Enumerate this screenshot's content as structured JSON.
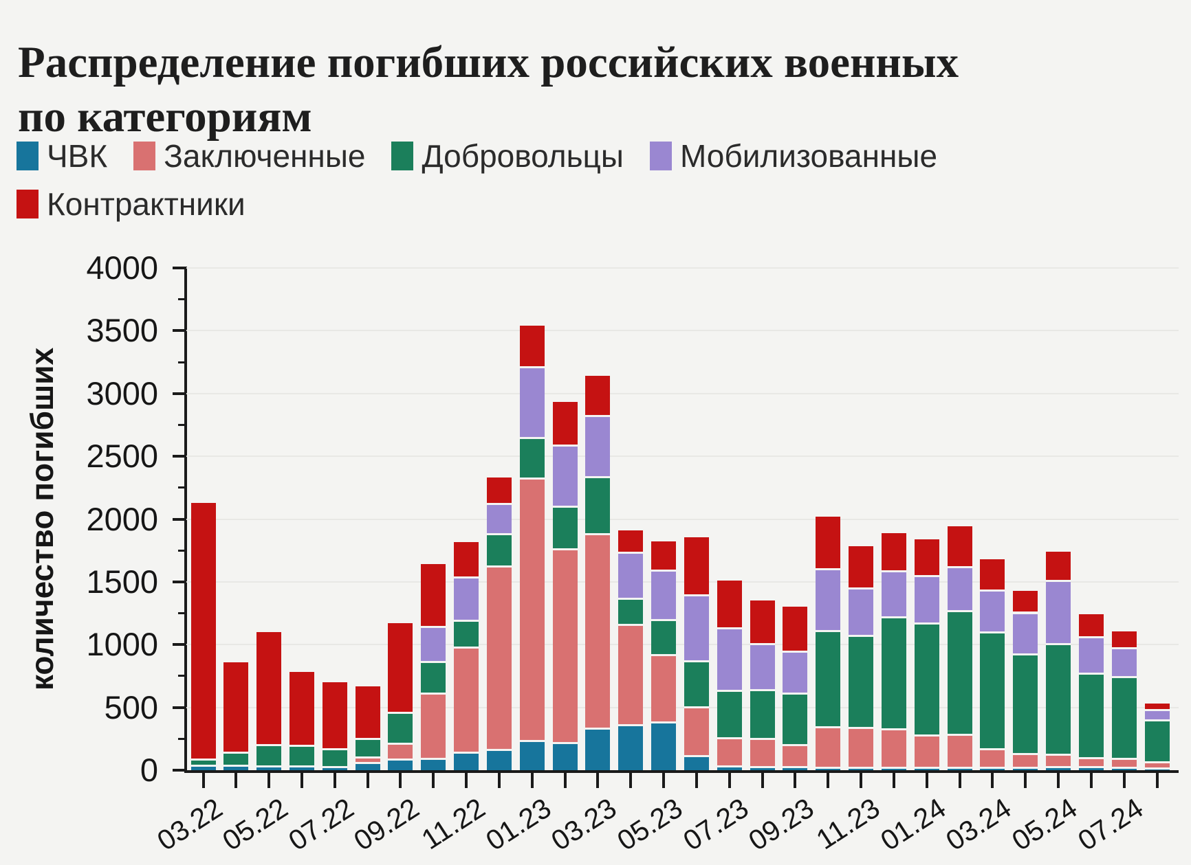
{
  "title": "Распределение погибших российских военных по категориям",
  "legend": {
    "items": [
      {
        "label": "ЧВК",
        "color": "#17759c"
      },
      {
        "label": "Заключенные",
        "color": "#d97171"
      },
      {
        "label": "Добровольцы",
        "color": "#1b7f5b"
      },
      {
        "label": "Мобилизованные",
        "color": "#9a87d1"
      },
      {
        "label": "Контрактники",
        "color": "#c51212"
      }
    ]
  },
  "chart_data": {
    "type": "bar",
    "stacked": true,
    "title": "Распределение погибших российских военных по категориям",
    "ylabel": "количество погибших",
    "xlabel": "",
    "ylim": [
      0,
      4000
    ],
    "ytick_step": 500,
    "yminor_tick_step": 250,
    "grid": "horizontal",
    "legend_position": "top",
    "categories": [
      "03.22",
      "04.22",
      "05.22",
      "06.22",
      "07.22",
      "08.22",
      "09.22",
      "10.22",
      "11.22",
      "12.22",
      "01.23",
      "02.23",
      "03.23",
      "04.23",
      "05.23",
      "06.23",
      "07.23",
      "08.23",
      "09.23",
      "10.23",
      "11.23",
      "12.23",
      "01.24",
      "02.24",
      "03.24",
      "04.24",
      "05.24",
      "06.24",
      "07.24",
      "08.24"
    ],
    "xtick_labels_shown": [
      "03.22",
      "05.22",
      "07.22",
      "09.22",
      "11.22",
      "01.23",
      "03.23",
      "05.23",
      "07.23",
      "09.23",
      "11.23",
      "01.24",
      "03.24",
      "05.24",
      "07.24"
    ],
    "series": [
      {
        "name": "ЧВК",
        "color": "#17759c",
        "values": [
          30,
          30,
          20,
          20,
          15,
          50,
          75,
          80,
          130,
          155,
          225,
          210,
          325,
          350,
          370,
          105,
          20,
          15,
          15,
          10,
          10,
          10,
          10,
          10,
          10,
          10,
          15,
          15,
          10,
          5
        ]
      },
      {
        "name": "Заключенные",
        "color": "#d97171",
        "values": [
          0,
          0,
          0,
          0,
          0,
          45,
          125,
          520,
          840,
          1460,
          2090,
          1540,
          1545,
          800,
          540,
          385,
          225,
          225,
          175,
          325,
          320,
          310,
          260,
          265,
          150,
          110,
          100,
          75,
          70,
          50
        ]
      },
      {
        "name": "Добровольцы",
        "color": "#1b7f5b",
        "values": [
          45,
          100,
          170,
          165,
          145,
          145,
          250,
          255,
          210,
          255,
          325,
          340,
          455,
          205,
          280,
          370,
          380,
          390,
          410,
          765,
          730,
          890,
          890,
          985,
          930,
          795,
          880,
          670,
          655,
          335
        ]
      },
      {
        "name": "Мобилизованные",
        "color": "#9a87d1",
        "values": [
          0,
          0,
          0,
          0,
          0,
          0,
          0,
          280,
          345,
          240,
          560,
          490,
          485,
          370,
          390,
          525,
          495,
          365,
          335,
          495,
          380,
          365,
          380,
          350,
          335,
          330,
          505,
          290,
          230,
          80
        ]
      },
      {
        "name": "Контрактники",
        "color": "#c51212",
        "values": [
          2055,
          730,
          910,
          595,
          540,
          430,
          720,
          505,
          290,
          220,
          340,
          355,
          330,
          185,
          240,
          470,
          390,
          355,
          370,
          425,
          345,
          315,
          300,
          330,
          255,
          185,
          240,
          190,
          140,
          60
        ]
      }
    ],
    "totals": [
      2130,
      860,
      1100,
      780,
      700,
      670,
      1170,
      1640,
      1815,
      2330,
      3540,
      2935,
      3140,
      1910,
      1820,
      1855,
      1510,
      1350,
      1305,
      2020,
      1785,
      1890,
      1840,
      1940,
      1680,
      1430,
      1740,
      1240,
      1105,
      530
    ]
  }
}
